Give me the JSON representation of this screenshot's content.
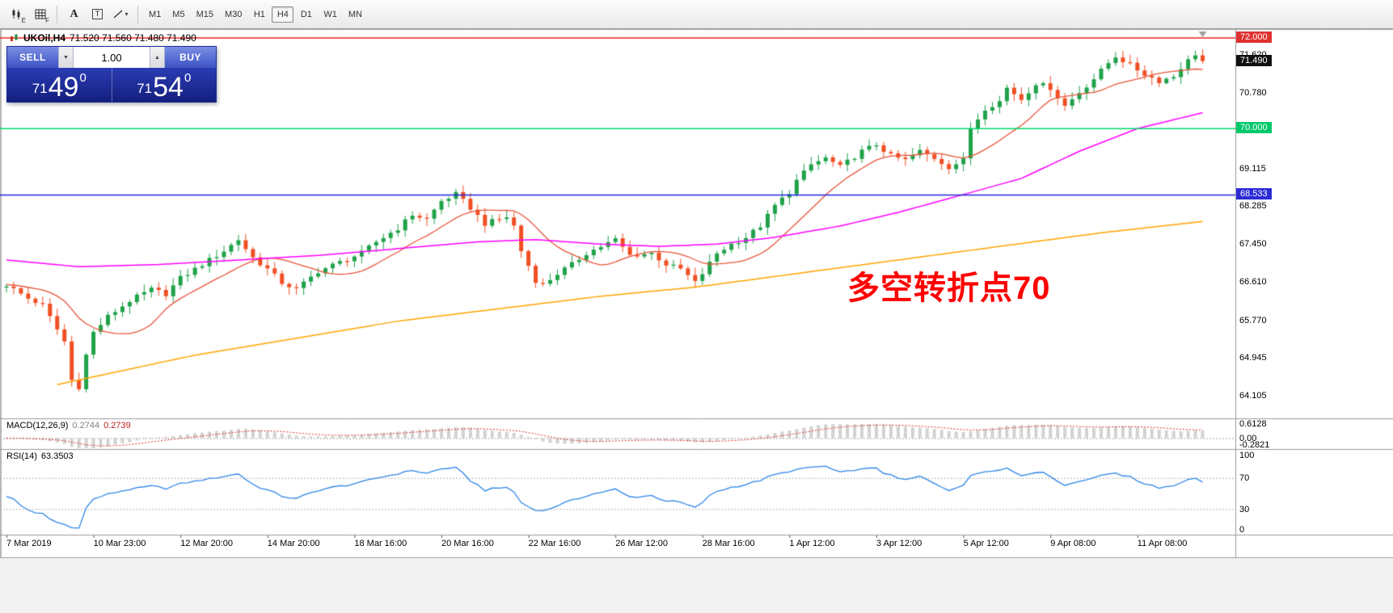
{
  "toolbar": {
    "tools": [
      {
        "name": "candle-chart-tool",
        "glyph": "E"
      },
      {
        "name": "grid-tool",
        "glyph": "F"
      },
      {
        "name": "text-tool",
        "glyph": "A"
      },
      {
        "name": "text-label-tool",
        "glyph": "T"
      },
      {
        "name": "line-studies-tool",
        "glyph": "▾"
      }
    ],
    "timeframes": [
      "M1",
      "M5",
      "M15",
      "M30",
      "H1",
      "H4",
      "D1",
      "W1",
      "MN"
    ],
    "active_timeframe": "H4"
  },
  "chart_header": {
    "symbol_period": "UKOil,H4",
    "ohlc": "71.520 71.560 71.480 71.490"
  },
  "trade_panel": {
    "sell_label": "SELL",
    "buy_label": "BUY",
    "volume": "1.00",
    "spin_down": "▼",
    "spin_up": "▲",
    "sell_price": {
      "whole": "71",
      "pips": "49",
      "sup": "0"
    },
    "buy_price": {
      "whole": "71",
      "pips": "54",
      "sup": "0"
    }
  },
  "annotation": {
    "text": "多空转折点70",
    "color": "#ff0000"
  },
  "price_axis": {
    "labels": [
      "71.620",
      "70.780",
      "69.115",
      "68.285",
      "67.450",
      "66.610",
      "65.770",
      "64.945",
      "64.105"
    ],
    "badges": [
      {
        "text": "72.000",
        "bg": "#e03131"
      },
      {
        "text": "71.490",
        "bg": "#111111"
      },
      {
        "text": "70.000",
        "bg": "#00c96a"
      },
      {
        "text": "68.533",
        "bg": "#2b2bd6"
      }
    ]
  },
  "macd_panel": {
    "label": "MACD(12,26,9)",
    "values": [
      "0.2744",
      "0.2739"
    ],
    "axis": [
      "0.6128",
      "0.00",
      "-0.2821"
    ]
  },
  "rsi_panel": {
    "label": "RSI(14)",
    "value": "63.3503",
    "axis": [
      "100",
      "70",
      "30",
      "0"
    ]
  },
  "time_axis": {
    "labels": [
      "7 Mar 2019",
      "10 Mar 23:00",
      "12 Mar 20:00",
      "14 Mar 20:00",
      "18 Mar 16:00",
      "20 Mar 16:00",
      "22 Mar 16:00",
      "26 Mar 12:00",
      "28 Mar 16:00",
      "1 Apr 12:00",
      "3 Apr 12:00",
      "5 Apr 12:00",
      "9 Apr 08:00",
      "11 Apr 08:00"
    ]
  },
  "chart_data": {
    "type": "candlestick",
    "symbol": "UKOil",
    "timeframe": "H4",
    "ohlc_display": {
      "open": 71.52,
      "high": 71.56,
      "low": 71.48,
      "close": 71.49
    },
    "current_bid": 71.49,
    "visible_price_range": [
      63.6,
      72.2
    ],
    "candle_count": 166,
    "up_color": "#1fa24a",
    "down_color": "#f04f23",
    "close_path_anchors": [
      [
        0,
        66.55
      ],
      [
        3,
        66.25
      ],
      [
        5,
        66.1
      ],
      [
        8,
        65.3
      ],
      [
        9,
        64.45
      ],
      [
        10,
        64.3
      ],
      [
        11,
        65.0
      ],
      [
        12,
        65.5
      ],
      [
        14,
        65.85
      ],
      [
        17,
        66.2
      ],
      [
        20,
        66.45
      ],
      [
        22,
        66.35
      ],
      [
        24,
        66.7
      ],
      [
        27,
        67.0
      ],
      [
        30,
        67.3
      ],
      [
        32,
        67.55
      ],
      [
        34,
        67.15
      ],
      [
        36,
        66.9
      ],
      [
        38,
        66.6
      ],
      [
        40,
        66.45
      ],
      [
        43,
        66.85
      ],
      [
        46,
        67.05
      ],
      [
        49,
        67.25
      ],
      [
        51,
        67.5
      ],
      [
        54,
        67.8
      ],
      [
        56,
        68.1
      ],
      [
        58,
        68.0
      ],
      [
        60,
        68.4
      ],
      [
        62,
        68.55
      ],
      [
        64,
        68.25
      ],
      [
        66,
        67.9
      ],
      [
        69,
        68.05
      ],
      [
        70,
        67.85
      ],
      [
        71,
        67.3
      ],
      [
        73,
        66.65
      ],
      [
        74,
        66.55
      ],
      [
        76,
        66.8
      ],
      [
        78,
        67.0
      ],
      [
        80,
        67.25
      ],
      [
        82,
        67.4
      ],
      [
        84,
        67.55
      ],
      [
        86,
        67.2
      ],
      [
        89,
        67.25
      ],
      [
        91,
        67.0
      ],
      [
        93,
        66.9
      ],
      [
        95,
        66.6
      ],
      [
        96,
        66.8
      ],
      [
        98,
        67.25
      ],
      [
        100,
        67.45
      ],
      [
        102,
        67.6
      ],
      [
        104,
        67.85
      ],
      [
        106,
        68.3
      ],
      [
        108,
        68.6
      ],
      [
        109,
        68.85
      ],
      [
        111,
        69.2
      ],
      [
        113,
        69.35
      ],
      [
        115,
        69.15
      ],
      [
        118,
        69.5
      ],
      [
        120,
        69.65
      ],
      [
        122,
        69.4
      ],
      [
        124,
        69.3
      ],
      [
        126,
        69.5
      ],
      [
        128,
        69.35
      ],
      [
        130,
        69.15
      ],
      [
        132,
        69.3
      ],
      [
        133,
        70.0
      ],
      [
        135,
        70.45
      ],
      [
        137,
        70.6
      ],
      [
        138,
        70.9
      ],
      [
        140,
        70.65
      ],
      [
        142,
        71.0
      ],
      [
        144,
        70.9
      ],
      [
        146,
        70.5
      ],
      [
        148,
        70.8
      ],
      [
        150,
        71.1
      ],
      [
        152,
        71.45
      ],
      [
        153,
        71.6
      ],
      [
        155,
        71.4
      ],
      [
        157,
        71.2
      ],
      [
        159,
        71.05
      ],
      [
        161,
        71.15
      ],
      [
        162,
        71.35
      ],
      [
        164,
        71.65
      ],
      [
        165,
        71.49
      ]
    ],
    "horizontal_lines": [
      {
        "price": 72.0,
        "color": "#e82222"
      },
      {
        "price": 70.0,
        "color": "#00d96a"
      },
      {
        "price": 68.533,
        "color": "#2323e0"
      }
    ],
    "moving_averages": {
      "fast": {
        "type": "sma",
        "period": 12,
        "color": "#e8553a"
      },
      "mid": {
        "color": "#ff00ff",
        "anchors": [
          [
            0,
            67.1
          ],
          [
            10,
            66.95
          ],
          [
            21,
            67.0
          ],
          [
            32,
            67.1
          ],
          [
            43,
            67.2
          ],
          [
            54,
            67.35
          ],
          [
            65,
            67.5
          ],
          [
            73,
            67.55
          ],
          [
            82,
            67.45
          ],
          [
            90,
            67.4
          ],
          [
            98,
            67.45
          ],
          [
            106,
            67.6
          ],
          [
            115,
            67.85
          ],
          [
            123,
            68.15
          ],
          [
            131,
            68.5
          ],
          [
            140,
            68.9
          ],
          [
            148,
            69.5
          ],
          [
            156,
            70.0
          ],
          [
            165,
            70.35
          ]
        ]
      },
      "slow": {
        "color": "#ffa500",
        "anchors": [
          [
            7,
            64.35
          ],
          [
            26,
            65.0
          ],
          [
            54,
            65.75
          ],
          [
            82,
            66.3
          ],
          [
            95,
            66.5
          ],
          [
            109,
            66.8
          ],
          [
            123,
            67.1
          ],
          [
            137,
            67.4
          ],
          [
            151,
            67.7
          ],
          [
            165,
            67.95
          ]
        ]
      }
    },
    "macd": {
      "fast": 12,
      "slow": 26,
      "signal_period": 9,
      "current": 0.2744,
      "current_signal": 0.2739,
      "scale_max": 0.6128,
      "scale_min": -0.2821,
      "histogram_color": "#d2d2d2",
      "signal_color": "#dd3333"
    },
    "rsi": {
      "period": 14,
      "current": 63.3503,
      "levels": [
        70,
        30
      ],
      "color": "#2e86e8"
    }
  }
}
